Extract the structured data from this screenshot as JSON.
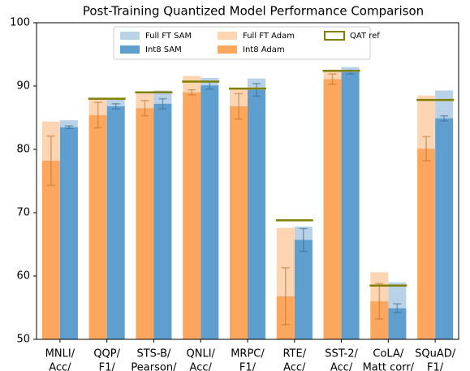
{
  "chart_data": {
    "type": "bar",
    "title": "Post-Training Quantized Model Performance Comparison",
    "categories": [
      [
        "MNLI/",
        "Acc/"
      ],
      [
        "QQP/",
        "F1/"
      ],
      [
        "STS-B/",
        "Pearson/"
      ],
      [
        "QNLI/",
        "Acc/"
      ],
      [
        "MRPC/",
        "F1/"
      ],
      [
        "RTE/",
        "Acc/"
      ],
      [
        "SST-2/",
        "Acc/"
      ],
      [
        "CoLA/",
        "Matt corr/"
      ],
      [
        "SQuAD/",
        "F1/"
      ]
    ],
    "series": [
      {
        "name": "Full FT SAM",
        "color": "#b9d2e8",
        "values": [
          84.6,
          88.1,
          89.3,
          91.3,
          91.2,
          67.8,
          93.0,
          59.0,
          89.3
        ]
      },
      {
        "name": "Int8 SAM",
        "color": "#5e9fcf",
        "values": [
          83.5,
          86.8,
          87.2,
          90.1,
          89.4,
          65.7,
          92.2,
          54.9,
          84.9
        ],
        "errors": [
          0.2,
          0.4,
          0.8,
          0.6,
          1.0,
          1.8,
          0.3,
          0.7,
          0.4
        ]
      },
      {
        "name": "Full FT Adam",
        "color": "#fdd5b3",
        "values": [
          84.4,
          87.9,
          89.0,
          91.6,
          89.7,
          67.6,
          92.6,
          60.6,
          88.5
        ]
      },
      {
        "name": "Int8 Adam",
        "color": "#fda65d",
        "values": [
          78.2,
          85.4,
          86.5,
          89.0,
          86.8,
          56.8,
          91.1,
          56.0,
          80.1
        ],
        "errors": [
          3.9,
          2.0,
          1.2,
          0.4,
          2.0,
          4.5,
          0.8,
          2.8,
          1.9
        ]
      },
      {
        "name": "QAT ref",
        "color": "#808000",
        "values": [
          null,
          88.0,
          89.0,
          90.7,
          89.6,
          68.8,
          92.4,
          58.5,
          87.8
        ]
      }
    ],
    "ylim": [
      50,
      100
    ],
    "yticks": [
      50,
      60,
      70,
      80,
      90,
      100
    ]
  }
}
